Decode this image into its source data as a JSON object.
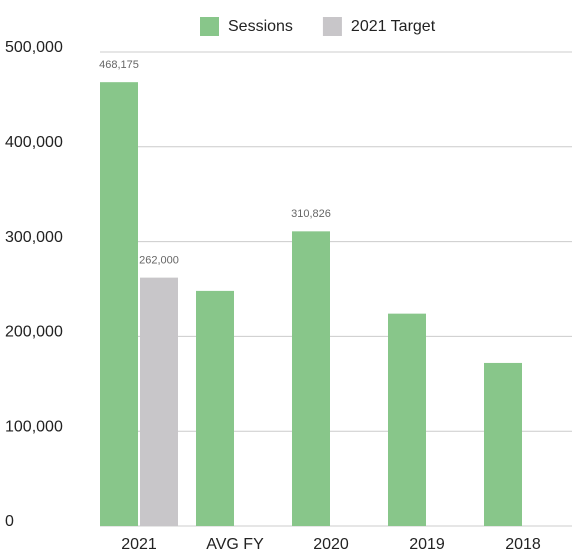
{
  "chart_data": {
    "type": "bar",
    "categories": [
      "2021",
      "AVG FY",
      "2020",
      "2019",
      "2018"
    ],
    "series": [
      {
        "name": "Sessions",
        "color": "#88c68a",
        "values": [
          468175,
          248000,
          310826,
          224000,
          172000
        ],
        "value_labels": [
          "468,175",
          null,
          "310,826",
          null,
          null
        ]
      },
      {
        "name": "2021 Target",
        "color": "#c8c6c9",
        "values": [
          262000,
          null,
          null,
          null,
          null
        ],
        "value_labels": [
          "262,000",
          null,
          null,
          null,
          null
        ]
      }
    ],
    "ylim": [
      0,
      500000
    ],
    "yticks": [
      0,
      {
        "value": 100000,
        "label": "100,000"
      },
      {
        "value": 200000,
        "label": "200,000"
      },
      {
        "value": 300000,
        "label": "300,000"
      },
      {
        "value": 400000,
        "label": "400,000"
      },
      {
        "value": 500000,
        "label": "500,000"
      }
    ],
    "grid": true,
    "legend": "top"
  }
}
